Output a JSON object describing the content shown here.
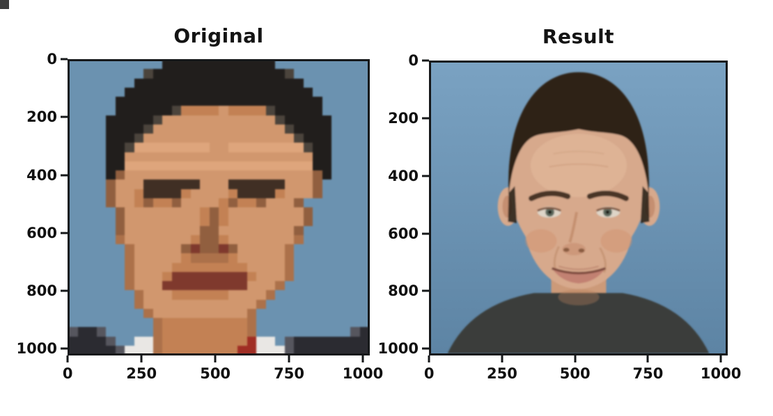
{
  "figure": {
    "background": "#ffffff",
    "corner_artifact_color": "#3c3c3c"
  },
  "styles": {
    "axis_color": "#16181a",
    "tick_label_color": "#111111",
    "title_color": "#141414"
  },
  "chart_data": [
    {
      "type": "heatmap",
      "title": "Original",
      "image_description": "Pixelated low-resolution (about 32x32) head-and-shoulders portrait of a man with short dark hair, tan skin, dark suit, white shirt and red tie on a slate-blue background",
      "x_ticks": [
        0,
        250,
        500,
        750,
        1000
      ],
      "y_ticks": [
        0,
        200,
        400,
        600,
        800,
        1000
      ],
      "axis_min": -0.5,
      "axis_max": 1023.5,
      "grid": false,
      "pixel_grid": {
        "palette": {
          "B": "#6d92ae",
          "H": "#211e1c",
          "h": "#4b443c",
          "S": "#c08257",
          "L": "#cf9770",
          "F": "#dca57e",
          "D": "#8f5f41",
          "E": "#3f2f25",
          "M": "#7c3a2e",
          "N": "#aa714c",
          "R": "#9c2f26",
          "W": "#e9e7e4",
          "G": "#2b2b31",
          "g": "#56565e"
        },
        "rows": [
          "BBBBBBBBBBHHHHHHHHHHHHBBBBBBBBBB",
          "BBBBBBBBhHHHHHHHHHHHHHHhBBBBBBBB",
          "BBBBBBBHHHHHHHHHHHHHHHHHHBBBBBBB",
          "BBBBBBHHHHHHHHHHHHHHHHHHHHBBBBBB",
          "BBBBBHHHHHHHHHHHHHHHHHHHHHHBBBBB",
          "BBBBBHHHHHHhSSSSLSSSShHHHHHBBBBB",
          "BBBBHHHHHhLLLLLLLLLLLLhHHHHHBBBB",
          "BBBBHHHHhLLLLLLLLLLLLLLhHHHHBBBB",
          "BBBBHHHhLLLLLLLLLLLLLLLLhHHHBBBB",
          "BBBBHHhFFFFFFFFLLFFFFFFFFhHHBBBB",
          "BBBBHHLLLLLLLLLLLLLLLLLLLLHHBBBB",
          "BBBBHHFFFFFFFFFFFFFFFFFFFFHHBBBB",
          "BBBBHDLLLLLLLLLLLLLLLLLLLLDHBBBB",
          "BBBBDLLLEEEEEELLLEEEEEELLLDBBBBB",
          "BBBBDLLSEEEESLLLLSEEEESLLLDBBBBB",
          "BBBBDLLSDSSDLLLLSDSSDLLLDBBBBBBB",
          "BBBBBDLLLLLLLLSDSLLLLLLLLDBBBBBB",
          "BBBBBDLLLLLLLLSDSLLLLLLLLDBBBBBB",
          "BBBBBDLLLLLLLLDDLLLLLLLLDBBBBBBB",
          "BBBBBNLLLLLLLSDDSLLLLLLLNBBBBBBB",
          "BBBBBBNLLLLLDMDDMDLLLLLNBBBBBBBB",
          "BBBBBBNLLLLLSNNNNSLLLLLNBBBBBBBB",
          "BBBBBBNLLLLSSSSSSSSLLLLNBBBBBBBB",
          "BBBBBBNLLLSMMMMMMMMSLLLNBBBBBBBB",
          "BBBBBBNLLLMMMMMMMMMLLLNBBBBBBBBB",
          "BBBBBBBNLLLSSSSSSLLLLNBBBBBBBBBB",
          "BBBBBBBNLLLLLLLLLLLLNBBBBBBBBBBB",
          "BBBBBBBBNLLLLLLLLLLNBBBBBBBBBBBB",
          "BBBBBBBBBNSSSSSSSSSNBBBBBBBBBBBB",
          "gGGgBBBBBNSSSSSSSSSNBBBBBBBBBBgG",
          "GGGGgBBWWNSSSSSSSSSRWWBgGGGGGGGG",
          "GGGGGgWWWNSSSSSSSSRRWWWgGGGGGGGG"
        ]
      }
    },
    {
      "type": "heatmap",
      "title": "Result",
      "image_description": "High-resolution upsampled result: photorealistic portrait of a smiling light-skinned man with short dark receding hair, wearing a dark gray crew-neck shirt, on a slate-blue background",
      "x_ticks": [
        0,
        250,
        500,
        750,
        1000
      ],
      "y_ticks": [
        0,
        200,
        400,
        600,
        800,
        1000
      ],
      "axis_min": -0.5,
      "axis_max": 1023.5,
      "grid": false,
      "face_colors": {
        "background_top": "#7aa2c2",
        "background_bottom": "#5d84a4",
        "skin": "#d7a98c",
        "skin_light": "#e4bb9d",
        "skin_shadow": "#b9835f",
        "neck": "#cc9a79",
        "hair": "#2d2219",
        "brow": "#4a3425",
        "shirt": "#3a3d3b",
        "lips": "#c28172",
        "mouth_line": "#7d4a3c",
        "iris": "#5d6a5e",
        "eye_white": "#ded5c8"
      }
    }
  ]
}
